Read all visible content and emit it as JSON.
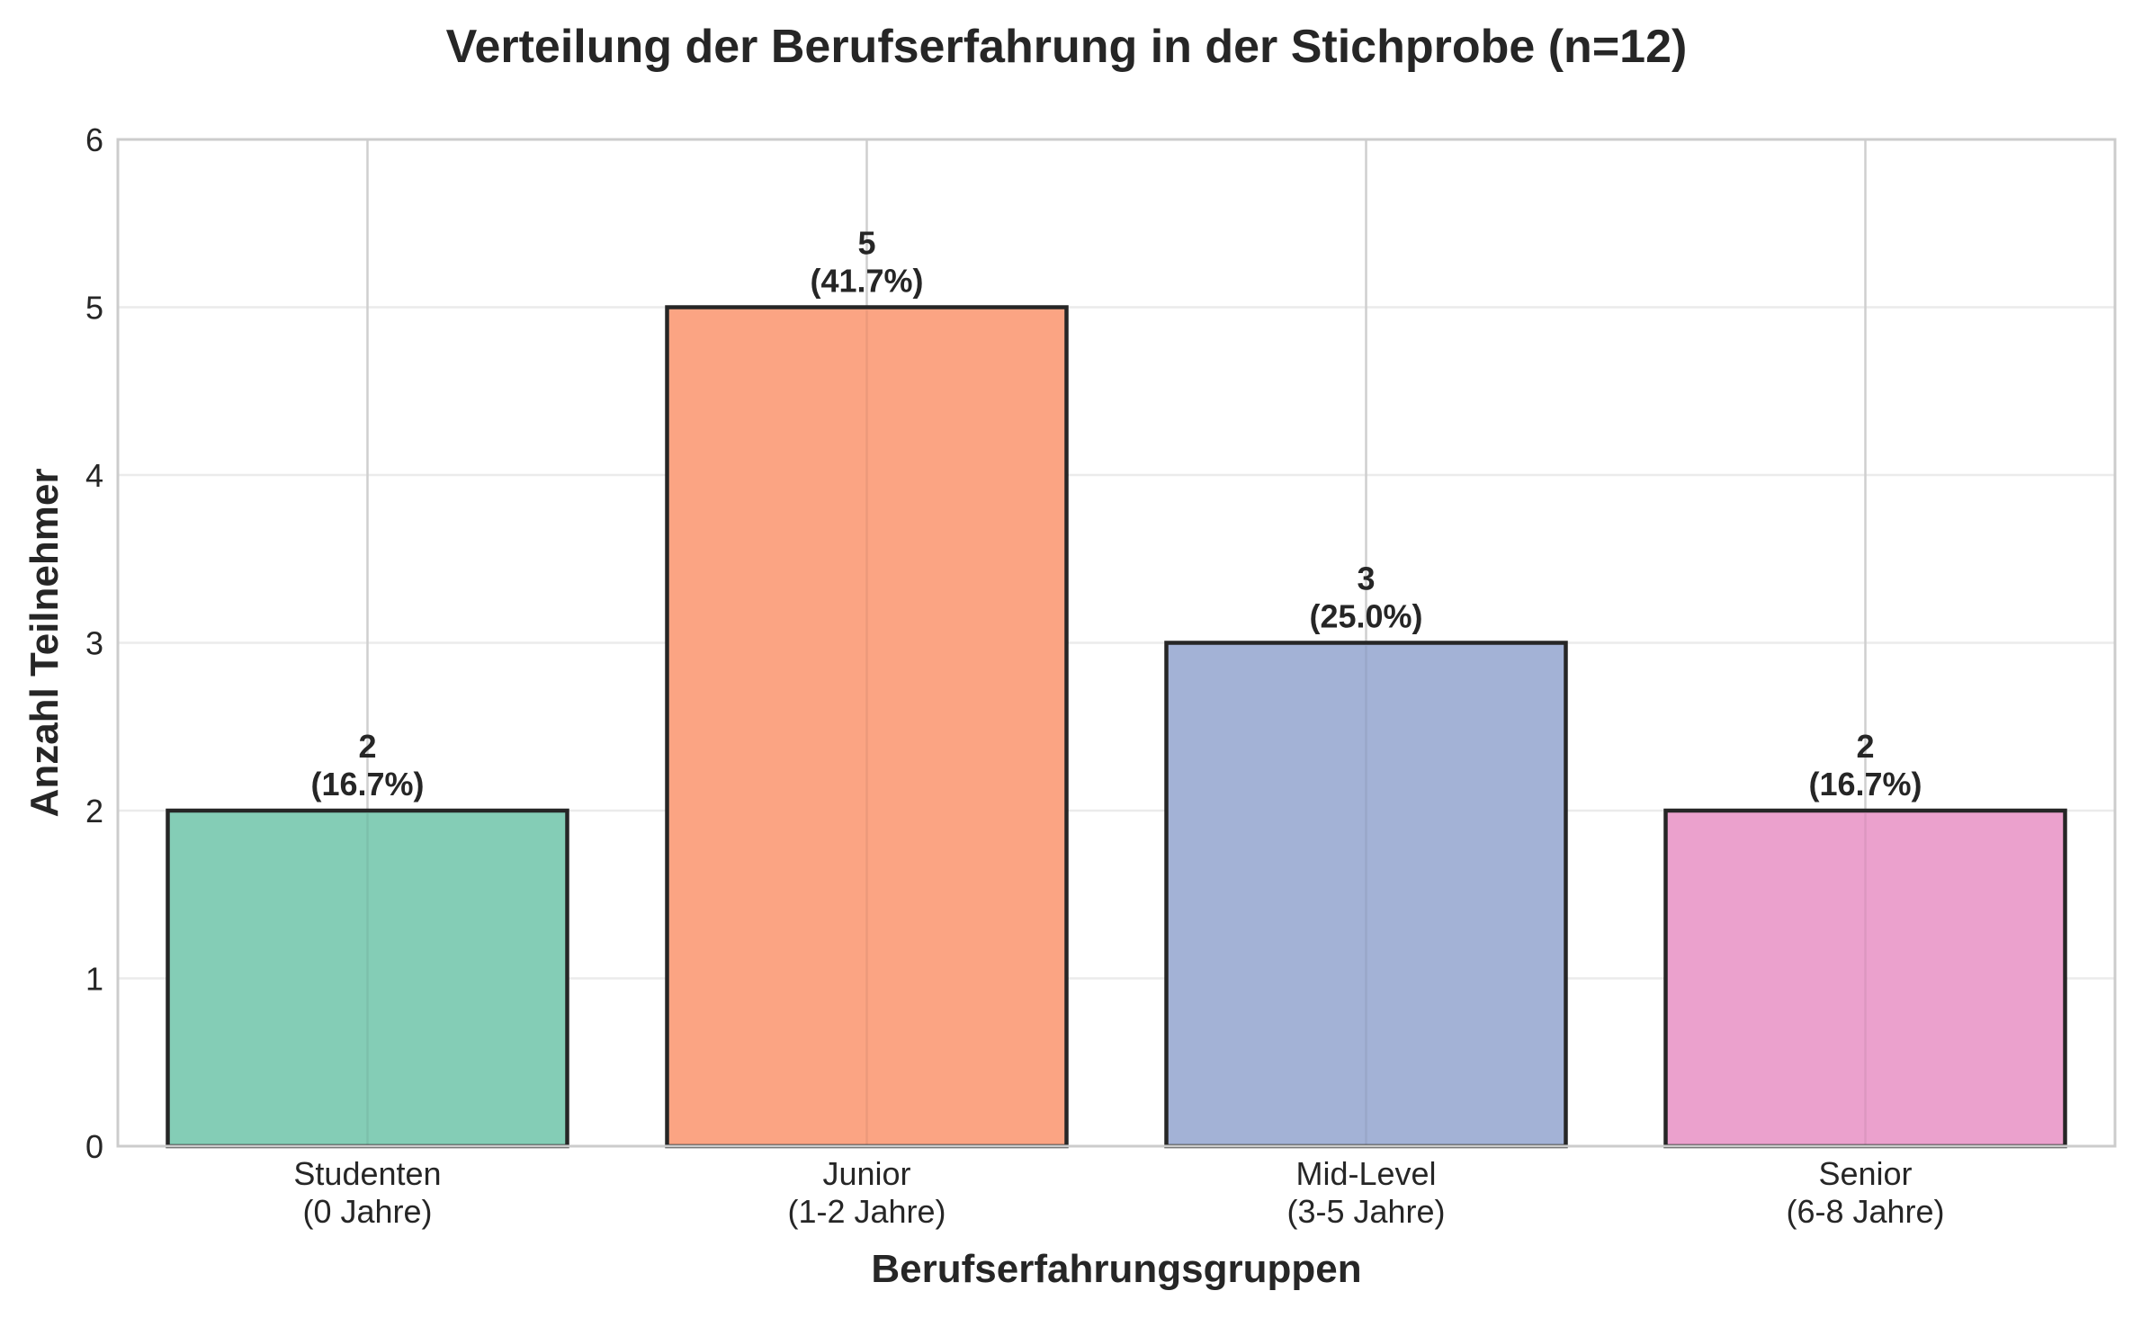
{
  "chart_data": {
    "type": "bar",
    "title": "Verteilung der Berufserfahrung in der Stichprobe (n=12)",
    "xlabel": "Berufserfahrungsgruppen",
    "ylabel": "Anzahl Teilnehmer",
    "ylim": [
      0,
      6
    ],
    "yticks": [
      "0",
      "1",
      "2",
      "3",
      "4",
      "5",
      "6"
    ],
    "grid": true,
    "categories": [
      [
        "Studenten",
        "(0 Jahre)"
      ],
      [
        "Junior",
        "(1-2 Jahre)"
      ],
      [
        "Mid-Level",
        "(3-5 Jahre)"
      ],
      [
        "Senior",
        "(6-8 Jahre)"
      ]
    ],
    "values": [
      2,
      5,
      3,
      2
    ],
    "value_labels": [
      "2",
      "5",
      "3",
      "2"
    ],
    "percent_labels": [
      "(16.7%)",
      "(41.7%)",
      "(25.0%)",
      "(16.7%)"
    ],
    "colors": [
      "#84cdb6",
      "#fba483",
      "#a3b2d6",
      "#eba1cd"
    ],
    "edge_color": "#262626"
  }
}
